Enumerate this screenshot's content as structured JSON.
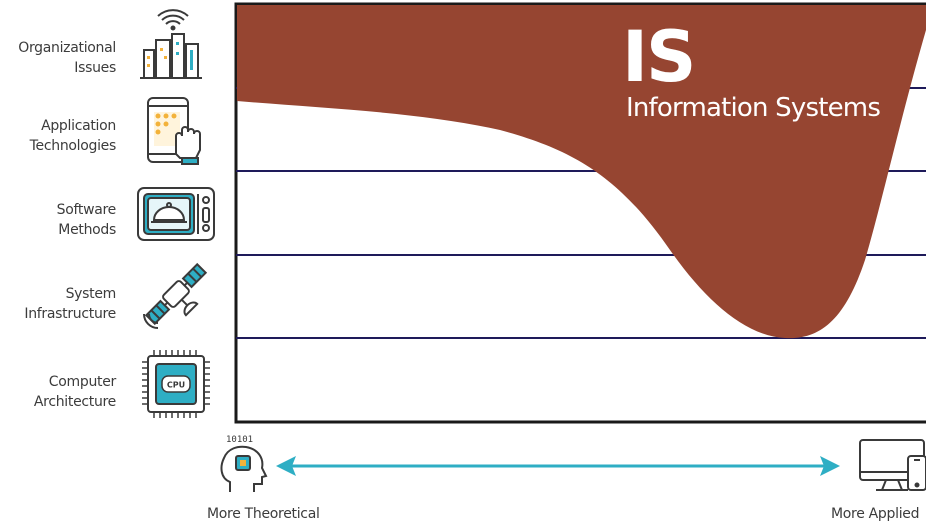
{
  "rows": [
    {
      "line1": "Organizational",
      "line2": "Issues",
      "icon": "city-wifi-icon"
    },
    {
      "line1": "Application",
      "line2": "Technologies",
      "icon": "tablet-touch-icon"
    },
    {
      "line1": "Software",
      "line2": "Methods",
      "icon": "microwave-icon"
    },
    {
      "line1": "System",
      "line2": "Infrastructure",
      "icon": "satellite-icon"
    },
    {
      "line1": "Computer",
      "line2": "Architecture",
      "icon": "cpu-chip-icon"
    }
  ],
  "region": {
    "abbrev": "IS",
    "name": "Information Systems",
    "color": "#964531"
  },
  "axis": {
    "left_label": "More Theoretical",
    "right_label": "More Applied",
    "left_icon": "head-binary-icon",
    "left_icon_text": "10101",
    "right_icon": "computer-devices-icon",
    "arrow_color": "#2eaec4"
  },
  "chip_label": "CPU",
  "colors": {
    "grid_line": "#1e1a5a",
    "icon_teal": "#2eaec4",
    "icon_dark": "#3a3a3a",
    "icon_yellow": "#f3b23a"
  }
}
